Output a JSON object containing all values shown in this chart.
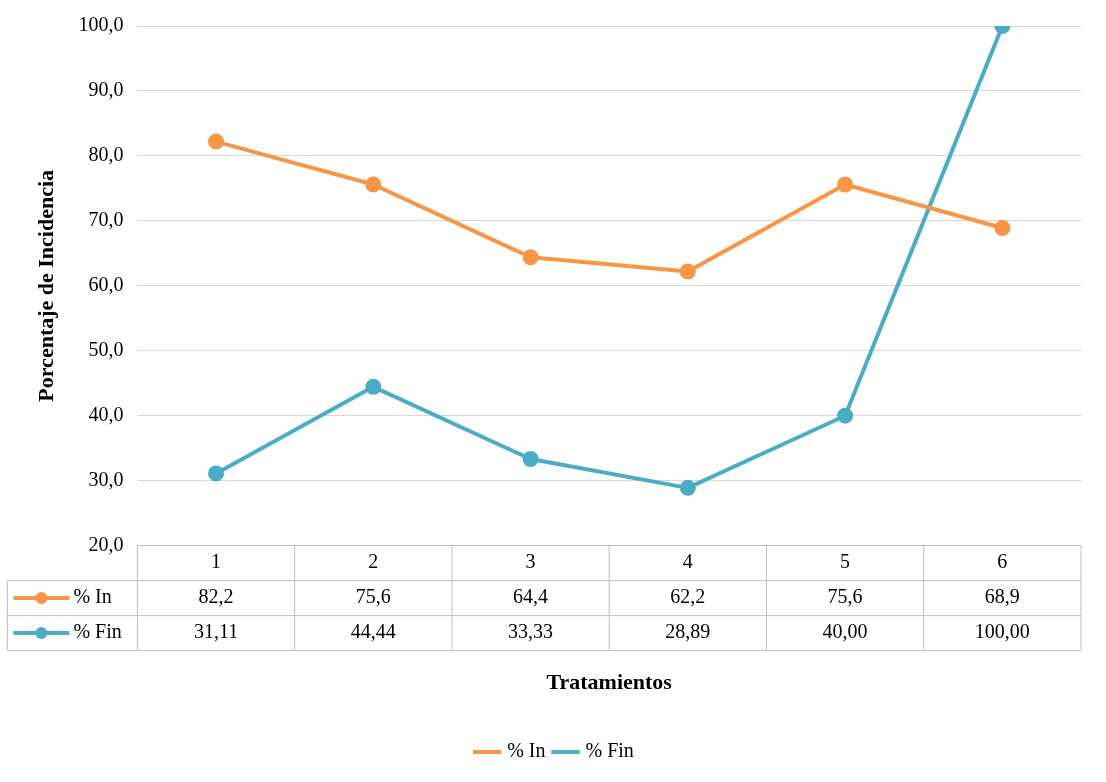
{
  "chart_data": {
    "type": "line",
    "ylabel": "Porcentaje de Incidencia",
    "xlabel": "Tratamientos",
    "categories": [
      "1",
      "2",
      "3",
      "4",
      "5",
      "6"
    ],
    "series": [
      {
        "name": "% In",
        "color": "#f79646",
        "values": [
          82.2,
          75.6,
          64.4,
          62.2,
          75.6,
          68.9
        ],
        "value_labels": [
          "82,2",
          "75,6",
          "64,4",
          "62,2",
          "75,6",
          "68,9"
        ]
      },
      {
        "name": "% Fin",
        "color": "#4bacc6",
        "values": [
          31.11,
          44.44,
          33.33,
          28.89,
          40.0,
          100.0
        ],
        "value_labels": [
          "31,11",
          "44,44",
          "33,33",
          "28,89",
          "40,00",
          "100,00"
        ]
      }
    ],
    "ylim": [
      20,
      100
    ],
    "yticks": [
      {
        "value": 20,
        "label": "20,0"
      },
      {
        "value": 30,
        "label": "30,0"
      },
      {
        "value": 40,
        "label": "40,0"
      },
      {
        "value": 50,
        "label": "50,0"
      },
      {
        "value": 60,
        "label": "60,0"
      },
      {
        "value": 70,
        "label": "70,0"
      },
      {
        "value": 80,
        "label": "80,0"
      },
      {
        "value": 90,
        "label": "90,0"
      },
      {
        "value": 100,
        "label": "100,0"
      }
    ],
    "grid": "y",
    "legend": "bottom",
    "marker": "circle",
    "line_style": "solid"
  }
}
